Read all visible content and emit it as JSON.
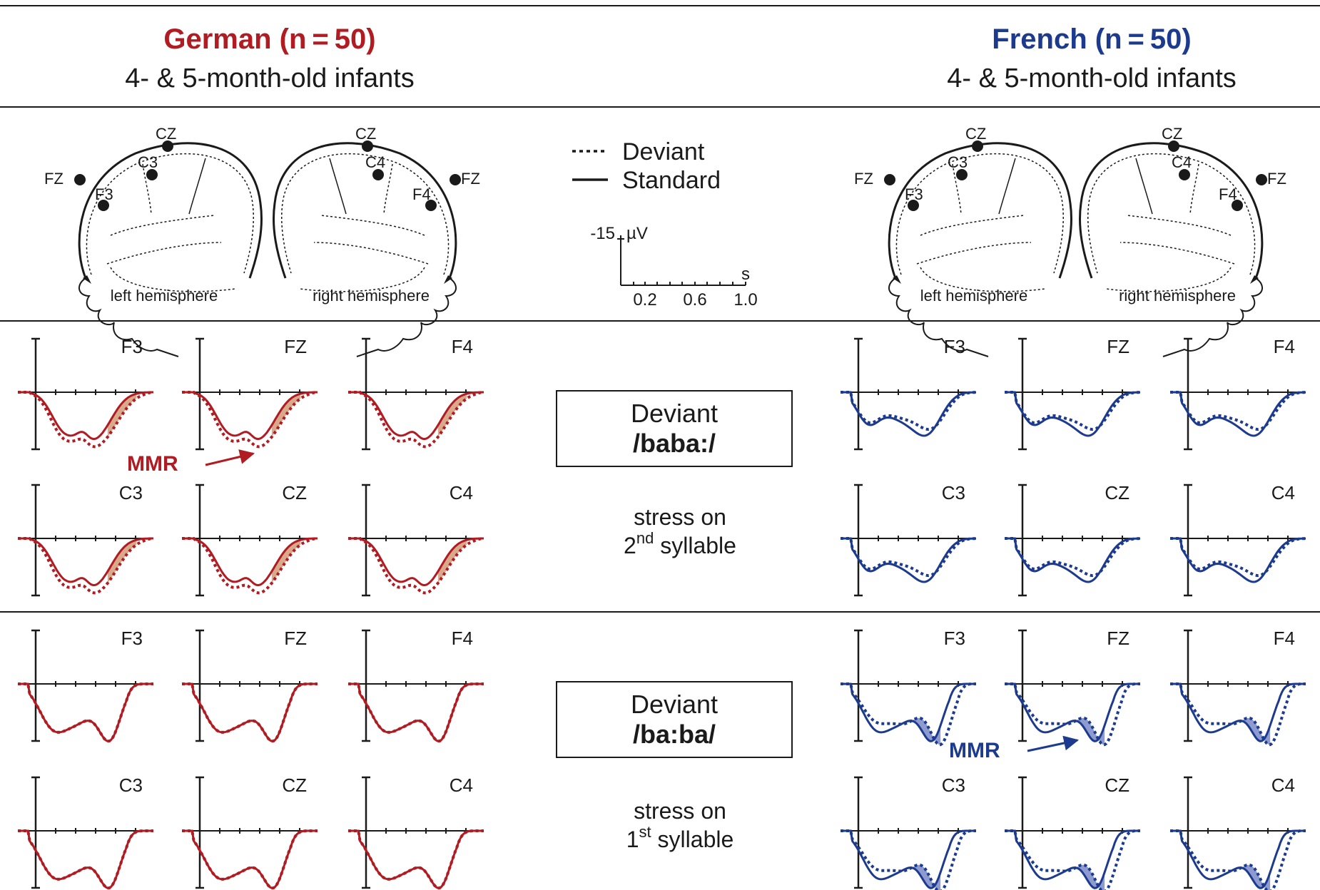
{
  "groups": [
    {
      "key": "german",
      "title": "German (n = 50)",
      "subtitle": "4- & 5-month-old infants",
      "color": "#b01c22",
      "fill": "#d9a98c"
    },
    {
      "key": "french",
      "title": "French (n = 50)",
      "subtitle": "4- & 5-month-old infants",
      "color": "#1c3a8e",
      "fill": "#8e9bd0"
    }
  ],
  "heads": {
    "left_label": "left hemisphere",
    "right_label": "right hemisphere",
    "left_electrodes": [
      "CZ",
      "C3",
      "FZ",
      "F3"
    ],
    "right_electrodes": [
      "CZ",
      "C4",
      "FZ",
      "F4"
    ]
  },
  "legend": {
    "deviant": "Deviant",
    "standard": "Standard"
  },
  "scale": {
    "y_label": "-15",
    "y_unit": "µV",
    "x_unit": "s",
    "x_ticks": [
      "0.2",
      "0.6",
      "1.0"
    ]
  },
  "conditions": [
    {
      "deviant_word": "Deviant",
      "stimulus": "/baba:/",
      "stress_line1": "stress on",
      "stress_ord": "2",
      "stress_sup": "nd",
      "stress_rest": " syllable"
    },
    {
      "deviant_word": "Deviant",
      "stimulus": "/ba:ba/",
      "stress_line1": "stress on",
      "stress_ord": "1",
      "stress_sup": "st",
      "stress_rest": " syllable"
    }
  ],
  "electrodes_row1": [
    "F3",
    "FZ",
    "F4"
  ],
  "electrodes_row2": [
    "C3",
    "CZ",
    "C4"
  ],
  "mmr_label": "MMR"
}
